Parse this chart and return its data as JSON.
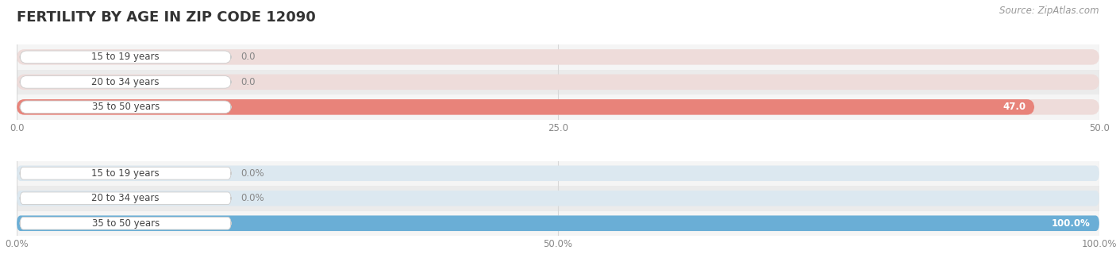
{
  "title": "FERTILITY BY AGE IN ZIP CODE 12090",
  "source_text": "Source: ZipAtlas.com",
  "top_chart": {
    "categories": [
      "15 to 19 years",
      "20 to 34 years",
      "35 to 50 years"
    ],
    "values": [
      0.0,
      0.0,
      47.0
    ],
    "xlim": [
      0,
      50.0
    ],
    "xticks": [
      0.0,
      25.0,
      50.0
    ],
    "xtick_labels": [
      "0.0",
      "25.0",
      "50.0"
    ],
    "bar_color": "#e8837a",
    "bar_bg_color": "#eedcda",
    "label_bg_color": "#f7f7f7",
    "value_labels": [
      "0.0",
      "0.0",
      "47.0"
    ]
  },
  "bottom_chart": {
    "categories": [
      "15 to 19 years",
      "20 to 34 years",
      "35 to 50 years"
    ],
    "values": [
      0.0,
      0.0,
      100.0
    ],
    "xlim": [
      0,
      100.0
    ],
    "xticks": [
      0.0,
      50.0,
      100.0
    ],
    "xtick_labels": [
      "0.0%",
      "50.0%",
      "100.0%"
    ],
    "bar_color": "#6aaed6",
    "bar_bg_color": "#dce8f0",
    "label_bg_color": "#f7f7f7",
    "value_labels": [
      "0.0%",
      "0.0%",
      "100.0%"
    ]
  },
  "title_color": "#333333",
  "title_fontsize": 13,
  "label_fontsize": 8.5,
  "tick_fontsize": 8.5,
  "source_fontsize": 8.5,
  "bg_color": "#ffffff",
  "row_bg_even": "#f5f5f5",
  "row_bg_odd": "#ebebeb",
  "label_text_color": "#444444",
  "tick_text_color": "#888888",
  "grid_color": "#d8d8d8"
}
